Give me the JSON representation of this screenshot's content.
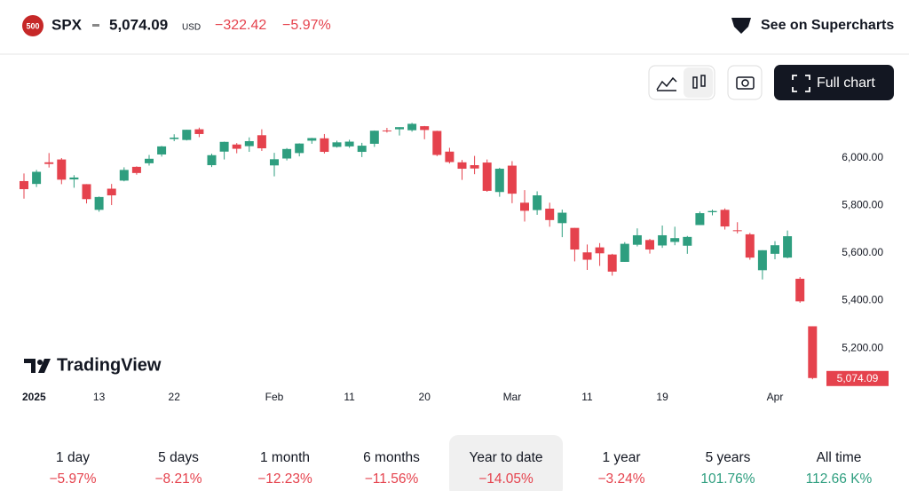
{
  "header": {
    "logo": "500",
    "symbol": "SPX",
    "price": "5,074.09",
    "currency": "USD",
    "change": "−322.42",
    "change_percent": "−5.97%",
    "change_color": "#e5424d",
    "supercharts": "See on Supercharts"
  },
  "toolbar": {
    "full_chart": "Full chart"
  },
  "watermark": "TradingView",
  "chart_data": {
    "type": "candlestick",
    "categories": [
      "2025",
      null,
      null,
      null,
      null,
      null,
      "13",
      null,
      null,
      null,
      null,
      null,
      "22",
      null,
      null,
      null,
      null,
      null,
      null,
      null,
      "Feb",
      null,
      null,
      null,
      null,
      null,
      "11",
      null,
      null,
      null,
      null,
      null,
      "20",
      null,
      null,
      null,
      null,
      null,
      null,
      "Mar",
      null,
      null,
      null,
      null,
      null,
      "11",
      null,
      null,
      null,
      null,
      null,
      "19",
      null,
      null,
      null,
      null,
      null,
      null,
      null,
      null,
      "Apr",
      null,
      null,
      null
    ],
    "open": [
      5903,
      5891,
      5982,
      5994,
      5910,
      5890,
      5782,
      5871,
      5905,
      5963,
      5978,
      6015,
      6080,
      6076,
      6121,
      5970,
      6027,
      6057,
      6050,
      6096,
      5969,
      5998,
      6021,
      6073,
      6083,
      6047,
      6049,
      6026,
      6060,
      6116,
      6121,
      6117,
      6134,
      6114,
      6027,
      5982,
      5970,
      5981,
      5857,
      5968,
      5812,
      5781,
      5787,
      5726,
      5706,
      5603,
      5624,
      5594,
      5563,
      5635,
      5655,
      5632,
      5647,
      5631,
      5718,
      5772,
      5782,
      5696,
      5679,
      5528,
      5597,
      5581,
      5492,
      5292
    ],
    "high": [
      5935,
      5950,
      6021,
      6000,
      5928,
      5890,
      5838,
      5891,
      5961,
      5965,
      6013,
      6051,
      6100,
      6119,
      6128,
      6018,
      6069,
      6063,
      6087,
      6121,
      6022,
      6042,
      6062,
      6085,
      6101,
      6073,
      6077,
      6064,
      6116,
      6127,
      6130,
      6148,
      6135,
      6115,
      6043,
      5992,
      6009,
      5994,
      5959,
      5987,
      5865,
      5860,
      5812,
      5783,
      5706,
      5636,
      5642,
      5597,
      5646,
      5704,
      5660,
      5716,
      5711,
      5672,
      5775,
      5783,
      5788,
      5730,
      5685,
      5612,
      5650,
      5695,
      5499,
      5292
    ],
    "low": [
      5829,
      5878,
      5960,
      5890,
      5875,
      5809,
      5774,
      5802,
      5902,
      5930,
      5968,
      6006,
      6071,
      6074,
      6088,
      5962,
      5994,
      6020,
      6026,
      6030,
      5923,
      5990,
      6007,
      6060,
      6019,
      6044,
      6043,
      6004,
      6047,
      6107,
      6095,
      6111,
      6079,
      6008,
      5977,
      5908,
      5932,
      5858,
      5837,
      5810,
      5733,
      5761,
      5711,
      5667,
      5565,
      5529,
      5546,
      5505,
      5563,
      5628,
      5598,
      5622,
      5633,
      5597,
      5718,
      5759,
      5699,
      5683,
      5572,
      5489,
      5574,
      5578,
      5391,
      5069
    ],
    "close": [
      5869,
      5942,
      5975,
      5909,
      5918,
      5827,
      5836,
      5843,
      5950,
      5937,
      5997,
      6049,
      6086,
      6119,
      6101,
      6012,
      6068,
      6039,
      6071,
      6041,
      5995,
      6038,
      6061,
      6084,
      6026,
      6066,
      6069,
      6052,
      6115,
      6115,
      6130,
      6144,
      6118,
      6013,
      5983,
      5955,
      5956,
      5862,
      5955,
      5850,
      5778,
      5843,
      5739,
      5770,
      5615,
      5572,
      5599,
      5522,
      5639,
      5675,
      5615,
      5675,
      5663,
      5668,
      5768,
      5777,
      5712,
      5693,
      5581,
      5612,
      5633,
      5671,
      5397,
      5074.09
    ],
    "last_price_label": "5,074.09",
    "up_color": "#2e9e7f",
    "down_color": "#e5424d",
    "ylim": [
      5021,
      6198
    ],
    "yticks": [
      {
        "value": 5200,
        "label": "5,200.00"
      },
      {
        "value": 5400,
        "label": "5,400.00"
      },
      {
        "value": 5600,
        "label": "5,600.00"
      },
      {
        "value": 5800,
        "label": "5,800.00"
      },
      {
        "value": 6000,
        "label": "6,000.00"
      }
    ],
    "grid": false
  },
  "periods": [
    {
      "label": "1 day",
      "change": "−5.97%",
      "color": "#e5424d"
    },
    {
      "label": "5 days",
      "change": "−8.21%",
      "color": "#e5424d"
    },
    {
      "label": "1 month",
      "change": "−12.23%",
      "color": "#e5424d"
    },
    {
      "label": "6 months",
      "change": "−11.56%",
      "color": "#e5424d"
    },
    {
      "label": "Year to date",
      "change": "−14.05%",
      "color": "#e5424d"
    },
    {
      "label": "1 year",
      "change": "−3.24%",
      "color": "#e5424d"
    },
    {
      "label": "5 years",
      "change": "101.76%",
      "color": "#2e9e7f"
    },
    {
      "label": "All time",
      "change": "112.66 K%",
      "color": "#2e9e7f"
    }
  ],
  "selected_period": 4
}
